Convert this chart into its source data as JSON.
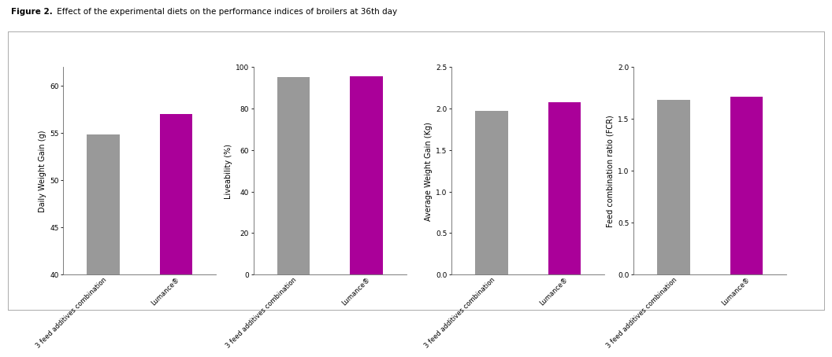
{
  "title_bold": "Figure 2.",
  "title_rest": " Effect of the experimental diets on the performance indices of broilers at 36th day",
  "subplots": [
    {
      "ylabel": "Daily Weight Gain (g)",
      "categories": [
        "3 feed additives combination",
        "Lumance®"
      ],
      "values": [
        54.8,
        57.0
      ],
      "colors": [
        "#999999",
        "#aa0099"
      ],
      "ylim": [
        40,
        62
      ],
      "yticks": [
        40,
        45,
        50,
        55,
        60
      ]
    },
    {
      "ylabel": "Liveability (%)",
      "categories": [
        "3 feed additives combination",
        "Lumance®"
      ],
      "values": [
        95.0,
        95.3
      ],
      "colors": [
        "#999999",
        "#aa0099"
      ],
      "ylim": [
        0,
        100
      ],
      "yticks": [
        0,
        20,
        40,
        60,
        80,
        100
      ]
    },
    {
      "ylabel": "Average Weight Gain (Kg)",
      "categories": [
        "3 feed additives combination",
        "Lumance®"
      ],
      "values": [
        1.97,
        2.07
      ],
      "colors": [
        "#999999",
        "#aa0099"
      ],
      "ylim": [
        0.0,
        2.5
      ],
      "yticks": [
        0.0,
        0.5,
        1.0,
        1.5,
        2.0,
        2.5
      ]
    },
    {
      "ylabel": "Feed combination ratio (FCR)",
      "categories": [
        "3 feed additives combination",
        "Lumance®"
      ],
      "values": [
        1.68,
        1.71
      ],
      "colors": [
        "#999999",
        "#aa0099"
      ],
      "ylim": [
        0.0,
        2.0
      ],
      "yticks": [
        0.0,
        0.5,
        1.0,
        1.5,
        2.0
      ]
    }
  ],
  "bar_width": 0.45,
  "figure_bg": "#ffffff",
  "axes_bg": "#ffffff",
  "title_fontsize": 7.5,
  "axis_label_fontsize": 7.0,
  "tick_fontsize": 6.5,
  "xticklabel_fontsize": 6.0
}
